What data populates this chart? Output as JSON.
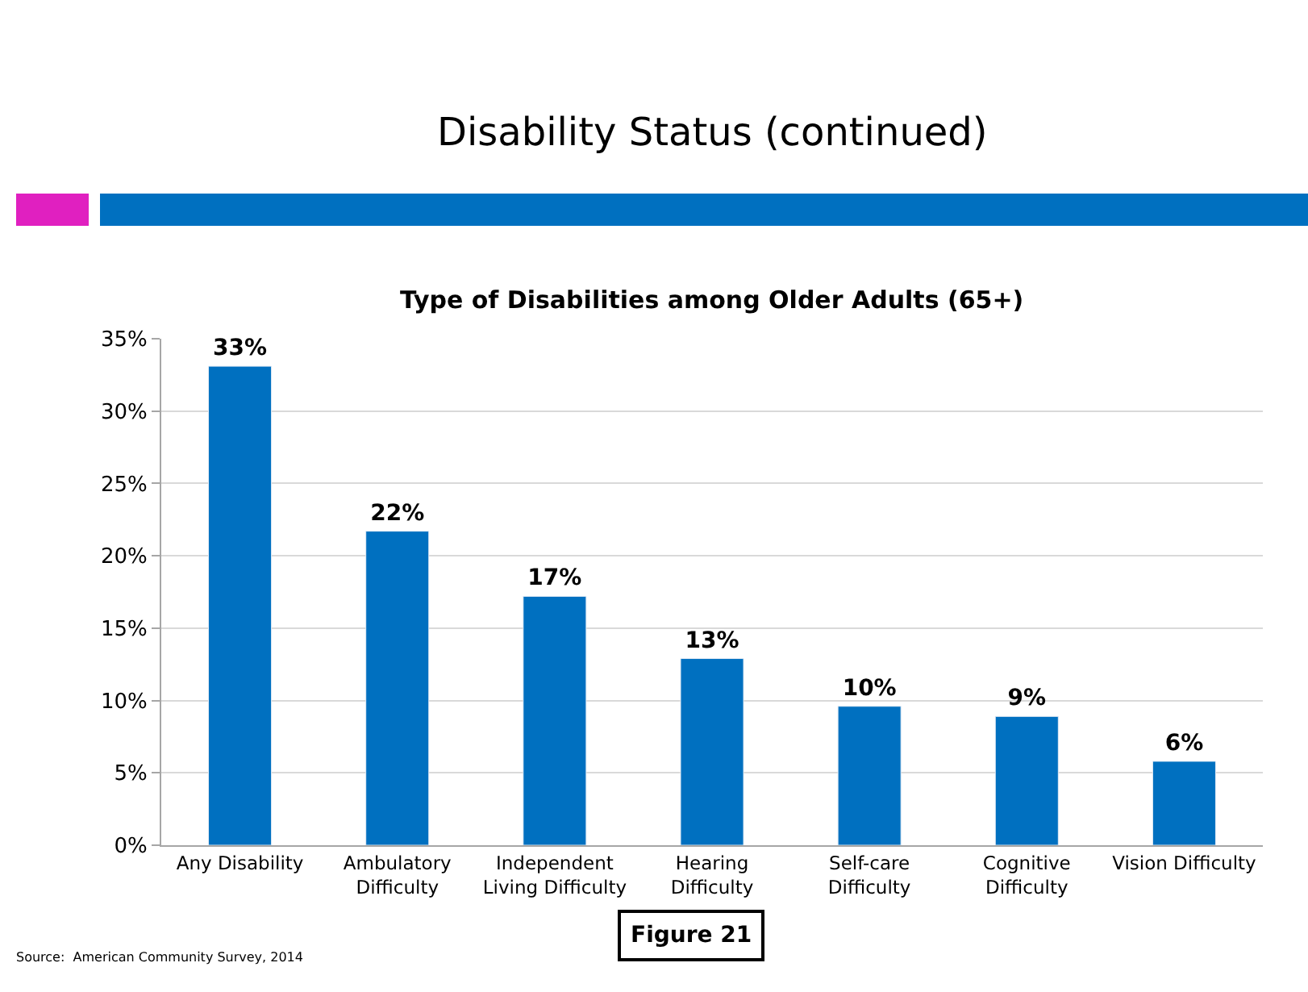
{
  "chart_data": {
    "type": "bar",
    "title": "Disability Status (continued)",
    "subtitle": "Type of Disabilities among Older Adults (65+)",
    "categories": [
      "Any Disability",
      "Ambulatory Difficulty",
      "Independent Living Difficulty",
      "Hearing Difficulty",
      "Self-care Difficulty",
      "Cognitive Difficulty",
      "Vision Difficulty"
    ],
    "values": [
      33.1,
      21.7,
      17.2,
      12.9,
      9.6,
      8.9,
      5.8
    ],
    "color": "#0070c0",
    "value_labels": [
      "33%",
      "22%",
      "17%",
      "13%",
      "10%",
      "9%",
      "6%"
    ],
    "ylim": [
      0,
      35
    ],
    "yticks": [
      {
        "value": 0,
        "label": "0%"
      },
      {
        "value": 5,
        "label": "5%"
      },
      {
        "value": 10,
        "label": "10%"
      },
      {
        "value": 15,
        "label": "15%"
      },
      {
        "value": 20,
        "label": "20%"
      },
      {
        "value": 25,
        "label": "25%"
      },
      {
        "value": 30,
        "label": "30%"
      },
      {
        "value": 35,
        "label": "35%"
      }
    ],
    "grid": "y",
    "annotations": [
      "Source:  American Community Survey, 2014",
      "Figure 21"
    ]
  }
}
